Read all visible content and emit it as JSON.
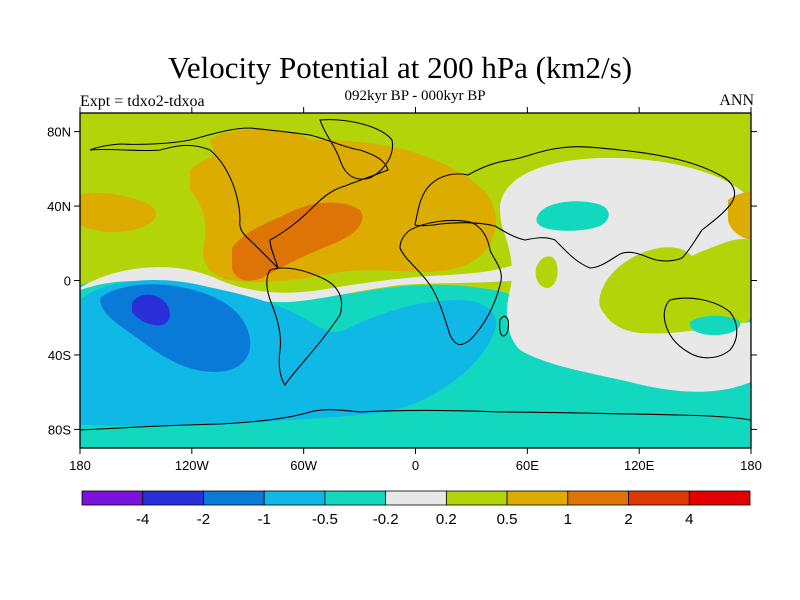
{
  "chart_data": {
    "type": "heatmap",
    "title": "Velocity Potential at 200 hPa (km2/s)",
    "subtitle": "092kyr BP - 000kyr BP",
    "left_label": "Expt = tdxo2-tdxoa",
    "right_label": "ANN",
    "x_range": [
      -180,
      180
    ],
    "y_range": [
      -90,
      90
    ],
    "x_ticks": [
      {
        "value": -180,
        "label": "180"
      },
      {
        "value": -120,
        "label": "120W"
      },
      {
        "value": -60,
        "label": "60W"
      },
      {
        "value": 0,
        "label": "0"
      },
      {
        "value": 60,
        "label": "60E"
      },
      {
        "value": 120,
        "label": "120E"
      },
      {
        "value": 180,
        "label": "180"
      }
    ],
    "y_ticks": [
      {
        "value": 80,
        "label": "80N"
      },
      {
        "value": 40,
        "label": "40N"
      },
      {
        "value": 0,
        "label": "0"
      },
      {
        "value": -40,
        "label": "40S"
      },
      {
        "value": -80,
        "label": "80S"
      }
    ],
    "colorbar": {
      "levels": [
        -4,
        -2,
        -1,
        -0.5,
        -0.2,
        0.2,
        0.5,
        1,
        2,
        4
      ],
      "labels": [
        "-4",
        "-2",
        "-1",
        "-0.5",
        "-0.2",
        "0.2",
        "0.5",
        "1",
        "2",
        "4"
      ],
      "colors": [
        "#7a12dc",
        "#2a30d8",
        "#0a7ad8",
        "#10b8e6",
        "#12d8c0",
        "#e8e8e8",
        "#b4d40a",
        "#dcac00",
        "#de7406",
        "#dc3a02",
        "#e40000"
      ]
    }
  }
}
